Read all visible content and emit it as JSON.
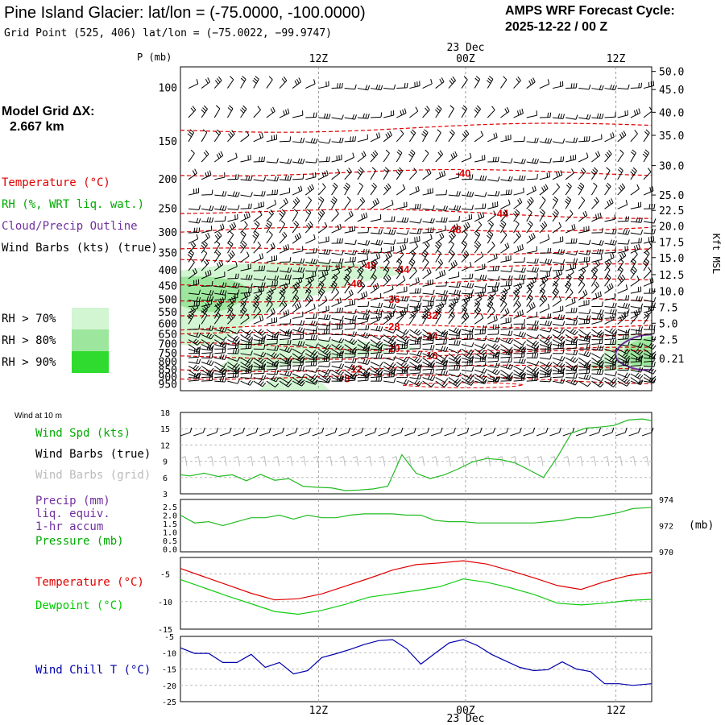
{
  "header": {
    "title": "Pine Island Glacier:  lat/lon = (-75.0000, -100.0000)",
    "subtitle": "Grid Point (525, 406) lat/lon = (−75.0022, −99.9747)",
    "cycle_title": "AMPS WRF Forecast Cycle:",
    "cycle_value": "2025-12-22 / 00  Z"
  },
  "time_axis": {
    "date_label": "23 Dec",
    "ticks": [
      {
        "label": "12Z",
        "frac": 0.293
      },
      {
        "label": "00Z",
        "frac": 0.605
      },
      {
        "label": "12Z",
        "frac": 0.924
      }
    ]
  },
  "left_panel": {
    "model_grid_label": "Model Grid ΔX:",
    "model_grid_value": "2.667 km",
    "temperature_label": "Temperature (°C)",
    "rh_label": "RH (%, WRT liq. wat.)",
    "cloud_label": "Cloud/Precip Outline",
    "wind_barbs_label": "Wind Barbs (kts) (true)",
    "rh_legend": [
      {
        "label": "RH > 70%",
        "color": "#d2f6d2"
      },
      {
        "label": "RH > 80%",
        "color": "#9de69d"
      },
      {
        "label": "RH > 90%",
        "color": "#2edb2e"
      }
    ]
  },
  "colors": {
    "temperature": "#e00000",
    "rh_text": "#00aa00",
    "cloud": "#7030a0",
    "pressure": "#00aa00",
    "dewpoint": "#00cc00",
    "windchill": "#0000aa",
    "grid_text": "#bbbbbb"
  },
  "chart_data": [
    {
      "type": "heatmap",
      "name": "cross-section",
      "ylabel": "P (mb)",
      "right_label": "Kft MSL",
      "pressure_levels": [
        100,
        150,
        200,
        250,
        300,
        350,
        400,
        450,
        500,
        550,
        600,
        650,
        700,
        750,
        800,
        850,
        900,
        950
      ],
      "height_kft_labels": [
        "50.0",
        "45.0",
        "40.0",
        "35.0",
        "30.0",
        "25.0",
        "22.5",
        "20.0",
        "17.5",
        "15.0",
        "12.5",
        "10.0",
        "7.5",
        "5.0",
        "2.5",
        "0.21"
      ],
      "height_kft_pressure": [
        88,
        101,
        120,
        143,
        180,
        225,
        253,
        285,
        322,
        362,
        412,
        467,
        528,
        596,
        674,
        780
      ],
      "isotherm_labels": [
        {
          "value": "-40",
          "p": 190,
          "t": 0.6
        },
        {
          "value": "-44",
          "p": 258,
          "t": 0.68
        },
        {
          "value": "-48",
          "p": 292,
          "t": 0.58
        },
        {
          "value": "-48",
          "p": 383,
          "t": 0.4
        },
        {
          "value": "-44",
          "p": 395,
          "t": 0.47
        },
        {
          "value": "-40",
          "p": 440,
          "t": 0.37
        },
        {
          "value": "-36",
          "p": 495,
          "t": 0.45
        },
        {
          "value": "-32",
          "p": 560,
          "t": 0.53
        },
        {
          "value": "-28",
          "p": 610,
          "t": 0.45
        },
        {
          "value": "-24",
          "p": 655,
          "t": 0.53
        },
        {
          "value": "-20",
          "p": 720,
          "t": 0.45
        },
        {
          "value": "-16",
          "p": 760,
          "t": 0.53
        },
        {
          "value": "-12",
          "p": 840,
          "t": 0.37
        },
        {
          "value": "-8",
          "p": 905,
          "t": 0.35
        }
      ]
    },
    {
      "type": "line",
      "name": "wind",
      "top_label": "Wind at 10 m",
      "series_label": "Wind Spd (kts)",
      "barbs_true_label": "Wind Barbs (true)",
      "barbs_grid_label": "Wind Barbs (grid)",
      "y_ticks": [
        3,
        6,
        9,
        12,
        15,
        18
      ],
      "ylim": [
        3,
        18
      ],
      "x": [
        0,
        0.02,
        0.05,
        0.08,
        0.11,
        0.14,
        0.17,
        0.2,
        0.23,
        0.26,
        0.29,
        0.32,
        0.35,
        0.38,
        0.41,
        0.44,
        0.47,
        0.5,
        0.53,
        0.56,
        0.59,
        0.62,
        0.65,
        0.68,
        0.71,
        0.74,
        0.77,
        0.8,
        0.83,
        0.86,
        0.89,
        0.92,
        0.95,
        0.98,
        1.0
      ],
      "values": [
        6.5,
        6.3,
        6.8,
        6.2,
        6.5,
        5.4,
        6.6,
        5.5,
        5.8,
        4.4,
        4.2,
        4.1,
        3.6,
        3.7,
        3.9,
        4.4,
        10.2,
        6.8,
        5.8,
        6.5,
        7.6,
        8.9,
        9.5,
        9.3,
        8.7,
        7.4,
        6.0,
        9.8,
        14.2,
        15.1,
        15.3,
        15.6,
        16.6,
        16.8,
        16.5
      ]
    },
    {
      "type": "line",
      "name": "pressure",
      "labels": [
        "Precip (mm)",
        "liq. equiv.",
        "1-hr accum",
        "Pressure (mb)"
      ],
      "left_ticks": [
        "2.5",
        "2.0",
        "1.5",
        "1.0",
        "0.5",
        "0.0"
      ],
      "right_ticks": [
        "974",
        "972",
        "970"
      ],
      "right_unit": "(mb)",
      "ylim": [
        970,
        974
      ],
      "x": [
        0,
        0.03,
        0.06,
        0.09,
        0.12,
        0.15,
        0.18,
        0.21,
        0.24,
        0.27,
        0.3,
        0.33,
        0.36,
        0.39,
        0.42,
        0.45,
        0.48,
        0.51,
        0.54,
        0.57,
        0.6,
        0.63,
        0.66,
        0.69,
        0.72,
        0.75,
        0.78,
        0.81,
        0.84,
        0.87,
        0.9,
        0.93,
        0.96,
        1.0
      ],
      "values": [
        972.8,
        972.2,
        972.3,
        972.0,
        972.3,
        972.6,
        972.6,
        972.8,
        972.5,
        972.8,
        972.6,
        972.6,
        972.8,
        972.9,
        972.9,
        972.9,
        972.8,
        972.8,
        972.4,
        972.3,
        972.3,
        972.2,
        972.2,
        972.2,
        972.2,
        972.2,
        972.3,
        972.4,
        972.6,
        972.6,
        972.8,
        973.0,
        973.3,
        973.4
      ]
    },
    {
      "type": "line",
      "name": "temperature",
      "labels": [
        "Temperature (°C)",
        "Dewpoint (°C)"
      ],
      "y_ticks": [
        -15,
        -10,
        -5
      ],
      "ylim": [
        -15,
        -2
      ],
      "x": [
        0,
        0.05,
        0.1,
        0.15,
        0.2,
        0.25,
        0.3,
        0.35,
        0.4,
        0.45,
        0.5,
        0.55,
        0.6,
        0.65,
        0.7,
        0.75,
        0.8,
        0.85,
        0.9,
        0.95,
        1.0
      ],
      "temperature": [
        -4.0,
        -5.5,
        -7.0,
        -8.5,
        -9.7,
        -9.5,
        -8.6,
        -7.2,
        -5.8,
        -4.3,
        -3.3,
        -3.0,
        -2.6,
        -3.2,
        -4.4,
        -5.7,
        -7.1,
        -7.8,
        -6.4,
        -5.3,
        -4.7
      ],
      "dewpoint": [
        -6.0,
        -7.5,
        -9.0,
        -10.4,
        -11.8,
        -12.3,
        -11.6,
        -10.5,
        -9.2,
        -8.6,
        -8.0,
        -7.3,
        -5.9,
        -6.5,
        -7.5,
        -8.7,
        -10.3,
        -10.6,
        -10.3,
        -9.8,
        -9.6
      ]
    },
    {
      "type": "line",
      "name": "windchill",
      "labels": [
        "Wind Chill T (°C)"
      ],
      "y_ticks": [
        -5,
        -10,
        -15,
        -20,
        -25
      ],
      "ylim": [
        -25,
        -5
      ],
      "x": [
        0,
        0.03,
        0.06,
        0.09,
        0.12,
        0.15,
        0.18,
        0.21,
        0.24,
        0.27,
        0.3,
        0.33,
        0.36,
        0.39,
        0.42,
        0.45,
        0.48,
        0.51,
        0.54,
        0.57,
        0.6,
        0.63,
        0.66,
        0.69,
        0.72,
        0.75,
        0.78,
        0.81,
        0.84,
        0.87,
        0.9,
        0.93,
        0.96,
        1.0
      ],
      "values": [
        -8.5,
        -10.2,
        -10.2,
        -13.0,
        -13.0,
        -10.5,
        -14.5,
        -13.0,
        -16.5,
        -15.5,
        -11.5,
        -10.3,
        -9.0,
        -7.5,
        -6.3,
        -6.0,
        -8.8,
        -13.5,
        -10.2,
        -7.0,
        -6.0,
        -7.8,
        -10.5,
        -12.5,
        -14.5,
        -15.5,
        -15.2,
        -12.8,
        -15.0,
        -15.8,
        -19.5,
        -19.5,
        -20.0,
        -19.5
      ]
    }
  ]
}
